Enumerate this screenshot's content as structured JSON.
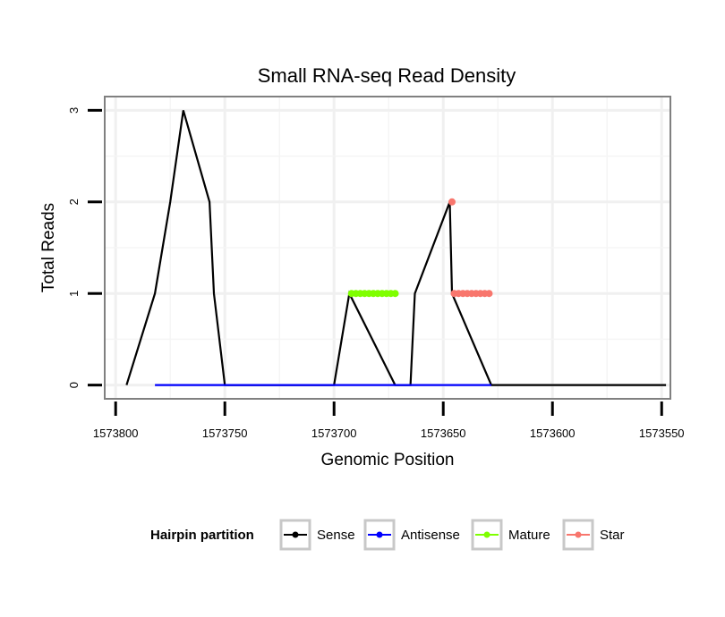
{
  "chart_data": {
    "type": "line",
    "title": "Small RNA-seq Read Density",
    "xlabel": "Genomic Position",
    "ylabel": "Total Reads",
    "x_reversed": true,
    "xlim": [
      1573805,
      1573546
    ],
    "ylim": [
      -0.15,
      3.15
    ],
    "x_ticks": [
      1573800,
      1573750,
      1573700,
      1573650,
      1573600,
      1573550
    ],
    "x_tick_labels": [
      "1573800",
      "1573750",
      "1573700",
      "1573650",
      "1573600",
      "1573550"
    ],
    "y_ticks": [
      0,
      1,
      2,
      3
    ],
    "y_tick_labels": [
      "0",
      "1",
      "2",
      "3"
    ],
    "grid": true,
    "legend": {
      "title": "Hairpin partition",
      "position": "bottom",
      "entries": [
        "Sense",
        "Antisense",
        "Mature",
        "Star"
      ]
    },
    "series": [
      {
        "name": "Sense",
        "color": "#000000",
        "step": [
          [
            1573795,
            0
          ],
          [
            1573782,
            1
          ],
          [
            1573775,
            2
          ],
          [
            1573769,
            3
          ],
          [
            1573757,
            2
          ],
          [
            1573755,
            1
          ],
          [
            1573750,
            0
          ],
          [
            1573700,
            0
          ],
          [
            1573693,
            1
          ],
          [
            1573672,
            0
          ],
          [
            1573665,
            0
          ],
          [
            1573663,
            1
          ],
          [
            1573647,
            2
          ],
          [
            1573646,
            1
          ],
          [
            1573628,
            0
          ],
          [
            1573548,
            0
          ]
        ]
      },
      {
        "name": "Antisense",
        "color": "#0000FF",
        "step": [
          [
            1573782,
            0
          ],
          [
            1573749,
            0
          ],
          [
            1573693,
            0
          ],
          [
            1573671,
            0
          ],
          [
            1573663,
            0
          ],
          [
            1573628,
            0
          ]
        ]
      },
      {
        "name": "Mature",
        "color": "#7FFF00",
        "x": [
          1573692,
          1573690,
          1573688,
          1573686,
          1573684,
          1573682,
          1573680,
          1573678,
          1573676,
          1573674,
          1573672
        ],
        "y": [
          1,
          1,
          1,
          1,
          1,
          1,
          1,
          1,
          1,
          1,
          1
        ]
      },
      {
        "name": "Star",
        "color": "#F8766D",
        "x": [
          1573646,
          1573645,
          1573643,
          1573641,
          1573639,
          1573637,
          1573635,
          1573633,
          1573631,
          1573629
        ],
        "y": [
          2,
          1,
          1,
          1,
          1,
          1,
          1,
          1,
          1,
          1
        ]
      }
    ]
  }
}
